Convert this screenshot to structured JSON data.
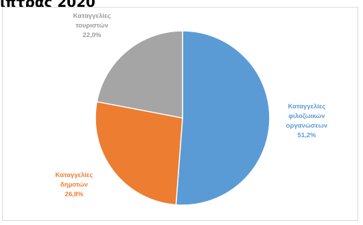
{
  "page": {
    "title_fragment": "ιπτρας 2020"
  },
  "chart_data": {
    "type": "pie",
    "title": "",
    "slices": [
      {
        "label": [
          "Καταγγελίες",
          "φιλοζωικών",
          "οργανώσεων"
        ],
        "percent_label": "51,2%",
        "value": 51.2,
        "color": "#5b9bd5"
      },
      {
        "label": [
          "Καταγγελίες",
          "δημοτών"
        ],
        "percent_label": "26,8%",
        "value": 26.8,
        "color": "#ed7d31"
      },
      {
        "label": [
          "Καταγγελίες",
          "τουριστών"
        ],
        "percent_label": "22,0%",
        "value": 22.0,
        "color": "#a5a5a5"
      }
    ],
    "start_angle_deg": 0,
    "direction": "clockwise"
  }
}
